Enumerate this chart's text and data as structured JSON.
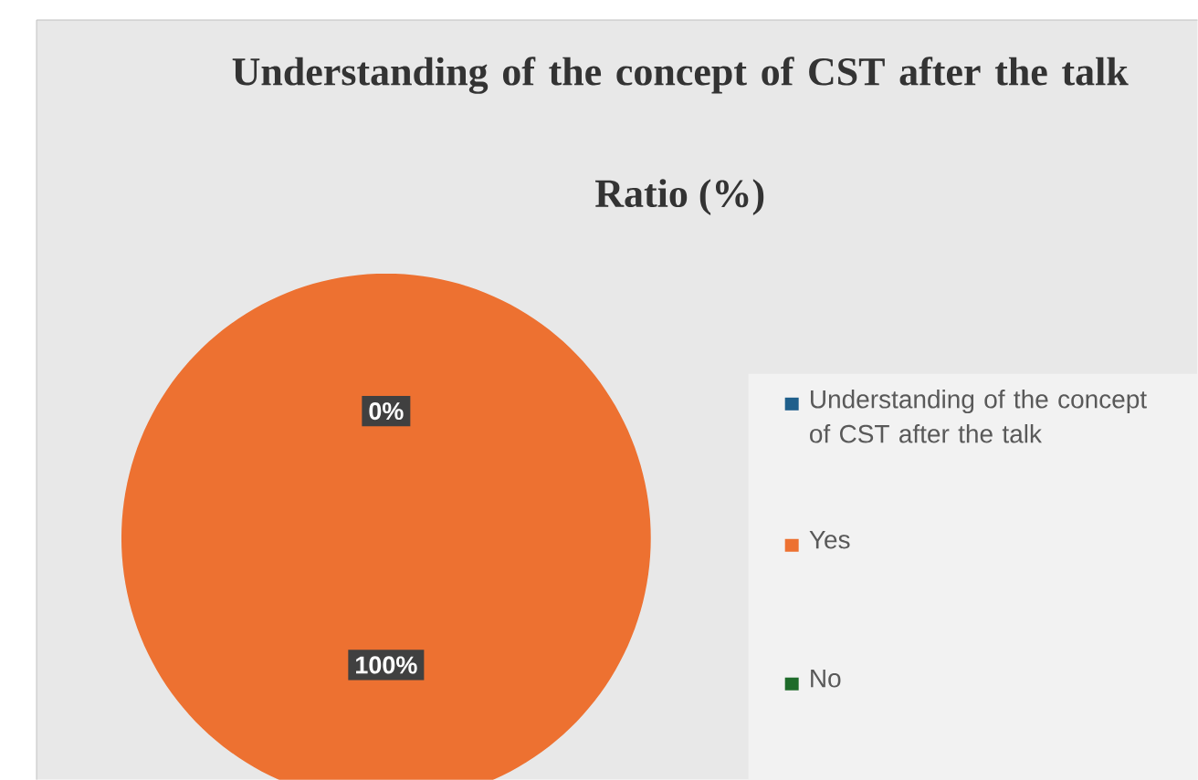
{
  "chart_data": {
    "type": "pie",
    "title": "Understanding of the concept of CST after the talk",
    "subtitle": "Ratio (%)",
    "categories": [
      "Understanding of the concept of CST after the talk",
      "Yes",
      "No"
    ],
    "values": [
      0,
      100,
      0
    ],
    "colors": [
      "#1f5f8b",
      "#ed7131",
      "#1e6b2a"
    ],
    "value_labels": [
      null,
      "100%",
      "0%"
    ],
    "legend": "right"
  }
}
